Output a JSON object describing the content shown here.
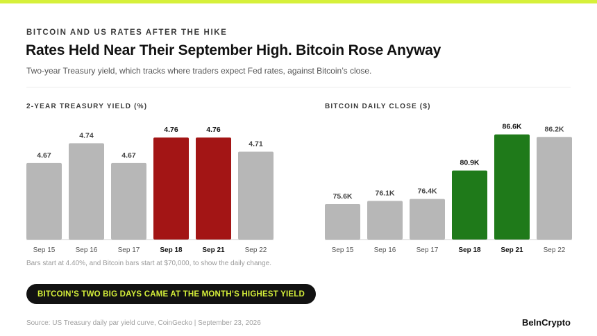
{
  "kicker": "BITCOIN AND US RATES AFTER THE HIKE",
  "title": "Rates Held Near Their September High. Bitcoin Rose Anyway",
  "subtitle": "Two-year Treasury yield, which tracks where traders expect Fed rates, against Bitcoin’s close.",
  "note": "Bars start at 4.40%, and Bitcoin bars start at $70,000, to show the daily change.",
  "banner": "BITCOIN’S TWO BIG DAYS CAME AT THE MONTH’S HIGHEST YIELD",
  "source": "Source: US Treasury daily par yield curve, CoinGecko | September 23, 2026",
  "brand": "BeInCrypto",
  "colors": {
    "accent_bar": "#d6f03a",
    "banner_text": "#d6f03a",
    "neutral_bar": "#b7b7b7",
    "yield_highlight": "#a31515",
    "btc_highlight": "#1f7a1a"
  },
  "chart_data": [
    {
      "type": "bar",
      "title": "2-YEAR TREASURY YIELD (%)",
      "categories": [
        "Sep 15",
        "Sep 16",
        "Sep 17",
        "Sep 18",
        "Sep 21",
        "Sep 22"
      ],
      "values": [
        4.67,
        4.74,
        4.67,
        4.76,
        4.76,
        4.71
      ],
      "value_labels": [
        "4.67",
        "4.74",
        "4.67",
        "4.76",
        "4.76",
        "4.71"
      ],
      "highlighted": [
        "Sep 18",
        "Sep 21"
      ],
      "ylim": [
        4.4,
        4.78
      ],
      "grid": false
    },
    {
      "type": "bar",
      "title": "BITCOIN DAILY CLOSE ($)",
      "categories": [
        "Sep 15",
        "Sep 16",
        "Sep 17",
        "Sep 18",
        "Sep 21",
        "Sep 22"
      ],
      "values": [
        75600,
        76100,
        76400,
        80900,
        86600,
        86200
      ],
      "value_labels": [
        "75.6K",
        "76.1K",
        "76.4K",
        "80.9K",
        "86.6K",
        "86.2K"
      ],
      "highlighted": [
        "Sep 18",
        "Sep 21"
      ],
      "ylim": [
        70000,
        87000
      ],
      "grid": false
    }
  ]
}
